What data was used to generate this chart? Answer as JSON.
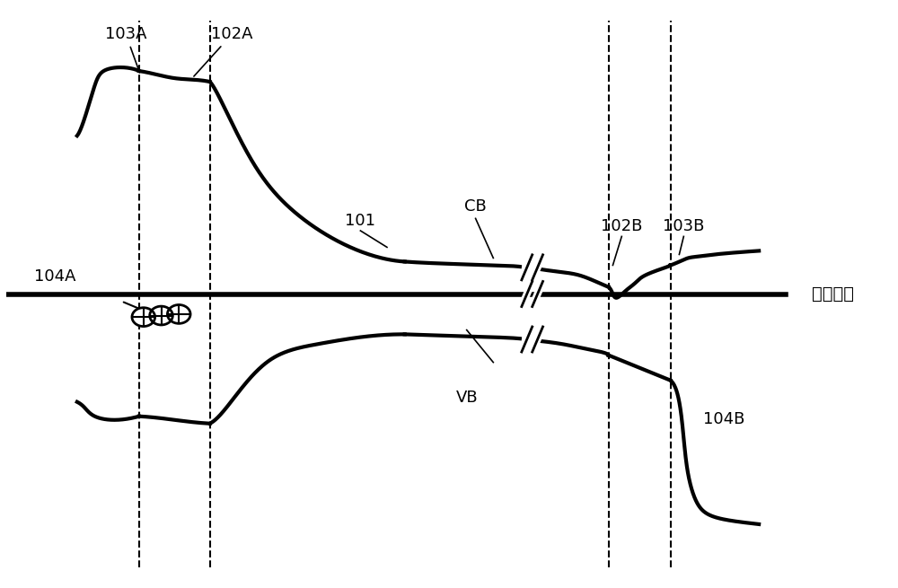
{
  "title": "",
  "fermi_label": "费米能级",
  "label_103A": "103A",
  "label_102A": "102A",
  "label_104A": "104A",
  "label_101": "101",
  "label_CB": "CB",
  "label_102B": "102B",
  "label_103B": "103B",
  "label_104B": "104B",
  "label_VB": "VB",
  "bg_color": "#ffffff",
  "line_color": "#000000",
  "dashed_color": "#000000",
  "fermi_color": "#000000",
  "lw": 3.0,
  "dashed_lw": 1.5
}
